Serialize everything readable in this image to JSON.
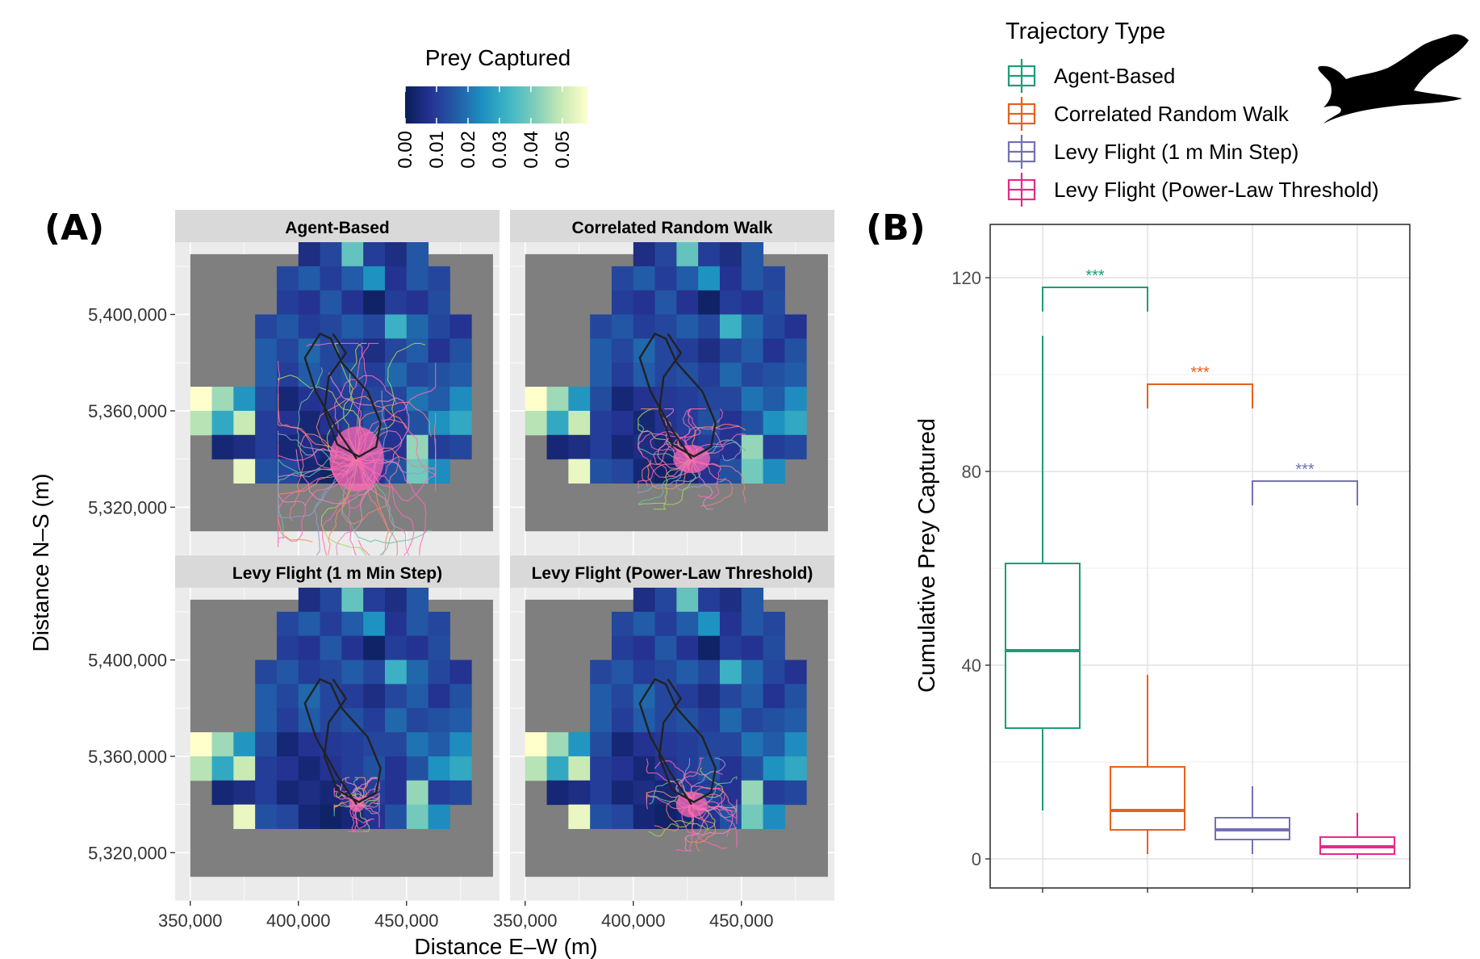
{
  "panel_labels": {
    "a": "(A)",
    "b": "(B)"
  },
  "colorbar": {
    "title": "Prey Captured",
    "ticks": [
      "0.00",
      "0.01",
      "0.02",
      "0.03",
      "0.04",
      "0.05"
    ],
    "tick_values": [
      0,
      0.01,
      0.02,
      0.03,
      0.04,
      0.05
    ],
    "max": 0.058,
    "palette": [
      "#081d58",
      "#253494",
      "#225ea8",
      "#1d91c0",
      "#41b6c4",
      "#7fcdbb",
      "#c7e9b4",
      "#ffffcc"
    ]
  },
  "legend": {
    "title": "Trajectory Type",
    "items": [
      {
        "label": "Agent-Based",
        "color": "#1b9e77"
      },
      {
        "label": "Correlated Random Walk",
        "color": "#e8601c"
      },
      {
        "label": "Levy Flight (1 m Min Step)",
        "color": "#7570b3"
      },
      {
        "label": "Levy Flight (Power-Law Threshold)",
        "color": "#e7298a"
      }
    ]
  },
  "panel_a": {
    "facets": [
      "Agent-Based",
      "Correlated Random Walk",
      "Levy Flight (1 m Min Step)",
      "Levy Flight (Power-Law Threshold)"
    ],
    "xlabel": "Distance E–W (m)",
    "ylabel": "Distance N–S (m)",
    "xticks": [
      "350,000",
      "400,000",
      "450,000"
    ],
    "xtick_values": [
      350000,
      400000,
      450000
    ],
    "yticks": [
      "5,400,000",
      "5,360,000",
      "5,320,000"
    ],
    "ytick_values": [
      5400000,
      5360000,
      5320000
    ],
    "xlim": [
      343000,
      493000
    ],
    "ylim": [
      5300000,
      5430000
    ],
    "background_color": "#7f7f7f",
    "cell_size_m": 10000,
    "grid_origin": [
      350000,
      5330000
    ],
    "heat_grid": [
      [
        null,
        null,
        null,
        null,
        null,
        0.006,
        0.012,
        0.038,
        0.01,
        0.006,
        0.015,
        null,
        null,
        null
      ],
      [
        null,
        null,
        null,
        null,
        0.012,
        0.016,
        0.01,
        0.016,
        0.025,
        0.008,
        0.015,
        0.012,
        null,
        null
      ],
      [
        null,
        null,
        null,
        null,
        0.01,
        0.008,
        0.015,
        0.008,
        0.002,
        0.01,
        0.008,
        0.013,
        null,
        null
      ],
      [
        null,
        null,
        null,
        0.012,
        0.015,
        0.01,
        0.012,
        0.016,
        0.012,
        0.032,
        0.018,
        0.012,
        0.008,
        null
      ],
      [
        null,
        null,
        null,
        0.016,
        0.012,
        0.018,
        0.012,
        0.01,
        0.006,
        0.012,
        0.016,
        0.008,
        0.014,
        null
      ],
      [
        null,
        null,
        null,
        0.016,
        0.01,
        0.016,
        0.012,
        0.014,
        0.01,
        0.018,
        0.012,
        0.014,
        0.016,
        null
      ],
      [
        0.058,
        0.045,
        0.026,
        0.013,
        0.004,
        0.008,
        0.009,
        0.01,
        0.012,
        0.012,
        0.02,
        0.016,
        0.024,
        null
      ],
      [
        0.048,
        0.03,
        0.05,
        0.01,
        0.008,
        0.004,
        0.008,
        0.01,
        0.014,
        0.008,
        0.014,
        0.025,
        0.03,
        null
      ],
      [
        null,
        0.004,
        0.006,
        0.01,
        0.004,
        0.006,
        0.004,
        0.008,
        0.01,
        0.008,
        0.044,
        0.01,
        0.012,
        null
      ],
      [
        null,
        null,
        0.055,
        0.014,
        0.012,
        0.004,
        0.002,
        0.004,
        0.008,
        0.014,
        0.04,
        0.024,
        null,
        null
      ]
    ],
    "reference_track_color": "#222222",
    "colony": [
      427000,
      5340000
    ],
    "cloud_radius_m": {
      "Agent-Based": [
        28000,
        30000
      ],
      "Correlated Random Walk": [
        19000,
        13000
      ],
      "Levy Flight (1 m Min Step)": [
        8000,
        7000
      ],
      "Levy Flight (Power-Law Threshold)": [
        16000,
        12000
      ]
    }
  },
  "chart_data": [
    {
      "type": "heatmap",
      "description_ref": "panel_a.heat_grid",
      "title": "",
      "xlabel": "Distance E–W (m)",
      "ylabel": "Distance N–S (m)",
      "facets": [
        "Agent-Based",
        "Correlated Random Walk",
        "Levy Flight (1 m Min Step)",
        "Levy Flight (Power-Law Threshold)"
      ],
      "legend_title": "Prey Captured",
      "value_range": [
        0,
        0.058
      ]
    },
    {
      "type": "box",
      "title": "",
      "xlabel": "",
      "ylabel": "Cumulative Prey Captured",
      "ylim": [
        -6,
        131
      ],
      "yticks": [
        0,
        40,
        80,
        120
      ],
      "grid": true,
      "legend_placement": "top-right",
      "series": [
        {
          "name": "Agent-Based",
          "color": "#1b9e77",
          "min": 10,
          "q1": 27,
          "median": 43,
          "q3": 61,
          "max": 108
        },
        {
          "name": "Correlated Random Walk",
          "color": "#e8601c",
          "min": 1,
          "q1": 6,
          "median": 10,
          "q3": 19,
          "max": 38
        },
        {
          "name": "Levy Flight (1 m Min Step)",
          "color": "#7570b3",
          "min": 1,
          "q1": 4,
          "median": 6,
          "q3": 8.5,
          "max": 15
        },
        {
          "name": "Levy Flight (Power-Law Threshold)",
          "color": "#e7298a",
          "min": 0,
          "q1": 1,
          "median": 2.5,
          "q3": 4.5,
          "max": 9.5
        }
      ],
      "annotations": [
        {
          "from": 0,
          "to": 1,
          "y": 118,
          "text": "***",
          "color": "#1b9e77"
        },
        {
          "from": 1,
          "to": 2,
          "y": 98,
          "text": "***",
          "color": "#e8601c"
        },
        {
          "from": 2,
          "to": 3,
          "y": 78,
          "text": "***",
          "color": "#7570b3"
        }
      ]
    }
  ]
}
